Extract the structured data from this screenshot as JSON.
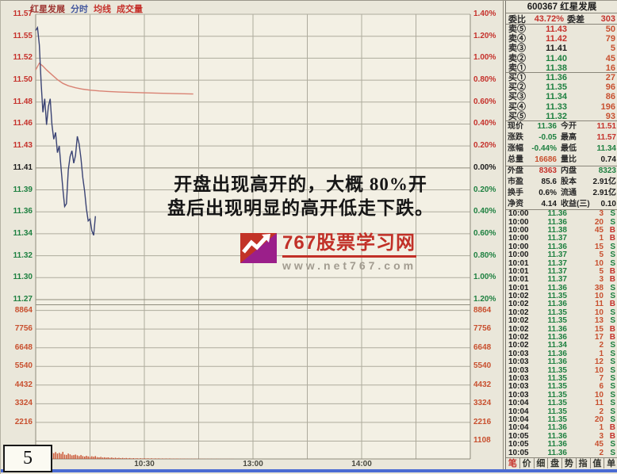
{
  "chart": {
    "header": {
      "stock": "红星发展",
      "tab_minute": "分时",
      "tab_ma": "均线",
      "tab_volume": "成交量"
    },
    "annotation_line1": "开盘出现高开的，大概 80%开",
    "annotation_line2": "盘后出现明显的高开低走下跌。",
    "watermark": {
      "title": "767股票学习网",
      "url": "www.net767.com"
    },
    "page_number": "5"
  },
  "chart_data": {
    "type": "line",
    "title": "红星发展(600367) 分时走势",
    "prev_close": 11.41,
    "open": 11.51,
    "high": 11.57,
    "low": 11.34,
    "last": 11.36,
    "price_axis": [
      "11.57",
      "11.55",
      "11.52",
      "11.50",
      "11.48",
      "11.46",
      "11.43",
      "11.41",
      "11.39",
      "11.36",
      "11.34",
      "11.32",
      "11.30",
      "11.27"
    ],
    "pct_axis": [
      "1.40%",
      "1.20%",
      "1.00%",
      "0.80%",
      "0.60%",
      "0.40%",
      "0.20%",
      "0.00%",
      "0.20%",
      "0.40%",
      "0.60%",
      "0.80%",
      "1.00%",
      "1.20%"
    ],
    "volume_axis": [
      "8864",
      "7756",
      "6648",
      "5540",
      "4432",
      "3324",
      "2216",
      "1108"
    ],
    "time_ticks": [
      {
        "label": "10:30",
        "minute": 60
      },
      {
        "label": "13:00",
        "minute": 120
      },
      {
        "label": "14:00",
        "minute": 180
      }
    ],
    "session_minutes": 240,
    "series": [
      {
        "name": "price",
        "x": [
          0,
          1,
          2,
          3,
          4,
          5,
          6,
          7,
          8,
          9,
          10,
          11,
          12,
          13,
          14,
          15,
          16,
          17,
          18,
          19,
          20,
          21,
          22,
          23,
          24,
          25,
          26,
          27,
          28,
          29,
          30,
          31,
          32,
          33
        ],
        "values": [
          11.553,
          11.556,
          11.538,
          11.498,
          11.468,
          11.482,
          11.455,
          11.474,
          11.482,
          11.455,
          11.44,
          11.447,
          11.426,
          11.433,
          11.41,
          11.388,
          11.37,
          11.373,
          11.408,
          11.422,
          11.428,
          11.415,
          11.423,
          11.443,
          11.435,
          11.42,
          11.4,
          11.386,
          11.368,
          11.355,
          11.357,
          11.345,
          11.34,
          11.36
        ]
      },
      {
        "name": "avg",
        "x": [
          0,
          2,
          4,
          6,
          9,
          12,
          15,
          18,
          22,
          26,
          30,
          35,
          40,
          46,
          53,
          60,
          68,
          77,
          87
        ],
        "values": [
          11.512,
          11.519,
          11.516,
          11.512,
          11.507,
          11.502,
          11.498,
          11.4955,
          11.4935,
          11.492,
          11.491,
          11.4902,
          11.4896,
          11.489,
          11.4886,
          11.4882,
          11.4878,
          11.4874,
          11.487
        ]
      }
    ],
    "volume_series": {
      "name": "volume",
      "values": [
        700,
        850,
        760,
        620,
        540,
        580,
        460,
        420,
        520,
        380,
        340,
        410,
        320,
        360,
        300,
        420,
        260,
        240,
        320,
        270,
        210,
        230,
        260,
        210,
        170,
        230,
        170,
        140,
        190,
        150,
        120,
        160,
        130,
        170,
        110,
        95,
        120,
        85,
        100,
        75,
        95,
        65,
        85,
        55,
        75,
        50,
        65,
        45,
        60,
        42,
        55,
        38,
        50,
        35,
        46,
        32,
        44,
        30,
        42,
        28,
        40,
        26,
        38,
        25,
        36,
        24,
        34,
        22,
        32,
        20,
        30,
        19,
        28,
        18,
        26,
        16,
        24,
        15,
        22,
        14,
        20,
        13,
        18,
        12,
        16,
        10,
        14,
        8,
        12,
        10,
        9,
        11,
        8,
        10,
        7,
        9,
        6,
        8,
        7,
        6,
        8,
        5,
        7,
        6,
        5,
        7,
        5,
        6,
        5,
        4
      ]
    }
  },
  "quote": {
    "code": "600367",
    "name": "红星发展",
    "weibi": {
      "label": "委比",
      "value": "43.72%",
      "label2": "委差",
      "value2": "303"
    },
    "asks": [
      {
        "level": "卖⑤",
        "price": "11.43",
        "vol": "50",
        "tone": "up"
      },
      {
        "level": "卖④",
        "price": "11.42",
        "vol": "79",
        "tone": "up"
      },
      {
        "level": "卖③",
        "price": "11.41",
        "vol": "5",
        "tone": "flat"
      },
      {
        "level": "卖②",
        "price": "11.40",
        "vol": "45",
        "tone": "down"
      },
      {
        "level": "卖①",
        "price": "11.38",
        "vol": "16",
        "tone": "down"
      }
    ],
    "bids": [
      {
        "level": "买①",
        "price": "11.36",
        "vol": "27",
        "tone": "down"
      },
      {
        "level": "买②",
        "price": "11.35",
        "vol": "96",
        "tone": "down"
      },
      {
        "level": "买③",
        "price": "11.34",
        "vol": "86",
        "tone": "down"
      },
      {
        "level": "买④",
        "price": "11.33",
        "vol": "196",
        "tone": "down"
      },
      {
        "level": "买⑤",
        "price": "11.32",
        "vol": "93",
        "tone": "down"
      }
    ],
    "stats": [
      {
        "l1": "现价",
        "v1": "11.36",
        "t1": "down",
        "l2": "今开",
        "v2": "11.51",
        "t2": "up"
      },
      {
        "l1": "涨跌",
        "v1": "-0.05",
        "t1": "down",
        "l2": "最高",
        "v2": "11.57",
        "t2": "up"
      },
      {
        "l1": "涨幅",
        "v1": "-0.44%",
        "t1": "down",
        "l2": "最低",
        "v2": "11.34",
        "t2": "down"
      },
      {
        "l1": "总量",
        "v1": "16686",
        "t1": "vol",
        "l2": "量比",
        "v2": "0.74",
        "t2": "flat"
      },
      {
        "l1": "外盘",
        "v1": "8363",
        "t1": "up",
        "l2": "内盘",
        "v2": "8323",
        "t2": "down"
      },
      {
        "l1": "市盈",
        "v1": "85.6",
        "t1": "flat",
        "l2": "股本",
        "v2": "2.91亿",
        "t2": "flat"
      },
      {
        "l1": "换手",
        "v1": "0.6%",
        "t1": "flat",
        "l2": "流通",
        "v2": "2.91亿",
        "t2": "flat"
      },
      {
        "l1": "净资",
        "v1": "4.14",
        "t1": "flat",
        "l2": "收益(三)",
        "v2": "0.10",
        "t2": "flat"
      }
    ],
    "ticks": [
      {
        "t": "10:00",
        "p": "11.36",
        "v": "3",
        "d": "S"
      },
      {
        "t": "10:00",
        "p": "11.36",
        "v": "20",
        "d": "S"
      },
      {
        "t": "10:00",
        "p": "11.38",
        "v": "45",
        "d": "B"
      },
      {
        "t": "10:00",
        "p": "11.37",
        "v": "1",
        "d": "B"
      },
      {
        "t": "10:00",
        "p": "11.36",
        "v": "15",
        "d": "S"
      },
      {
        "t": "10:00",
        "p": "11.37",
        "v": "5",
        "d": "S"
      },
      {
        "t": "10:01",
        "p": "11.37",
        "v": "10",
        "d": "S"
      },
      {
        "t": "10:01",
        "p": "11.37",
        "v": "5",
        "d": "B"
      },
      {
        "t": "10:01",
        "p": "11.37",
        "v": "3",
        "d": "B"
      },
      {
        "t": "10:01",
        "p": "11.36",
        "v": "38",
        "d": "S"
      },
      {
        "t": "10:02",
        "p": "11.35",
        "v": "10",
        "d": "S"
      },
      {
        "t": "10:02",
        "p": "11.36",
        "v": "11",
        "d": "B"
      },
      {
        "t": "10:02",
        "p": "11.35",
        "v": "10",
        "d": "S"
      },
      {
        "t": "10:02",
        "p": "11.35",
        "v": "13",
        "d": "S"
      },
      {
        "t": "10:02",
        "p": "11.36",
        "v": "15",
        "d": "B"
      },
      {
        "t": "10:02",
        "p": "11.36",
        "v": "17",
        "d": "B"
      },
      {
        "t": "10:02",
        "p": "11.34",
        "v": "2",
        "d": "S"
      },
      {
        "t": "10:03",
        "p": "11.36",
        "v": "1",
        "d": "S"
      },
      {
        "t": "10:03",
        "p": "11.36",
        "v": "12",
        "d": "S"
      },
      {
        "t": "10:03",
        "p": "11.35",
        "v": "10",
        "d": "S"
      },
      {
        "t": "10:03",
        "p": "11.35",
        "v": "7",
        "d": "S"
      },
      {
        "t": "10:03",
        "p": "11.35",
        "v": "6",
        "d": "S"
      },
      {
        "t": "10:03",
        "p": "11.35",
        "v": "10",
        "d": "S"
      },
      {
        "t": "10:04",
        "p": "11.35",
        "v": "11",
        "d": "S"
      },
      {
        "t": "10:04",
        "p": "11.35",
        "v": "2",
        "d": "S"
      },
      {
        "t": "10:04",
        "p": "11.35",
        "v": "20",
        "d": "S"
      },
      {
        "t": "10:04",
        "p": "11.36",
        "v": "1",
        "d": "B"
      },
      {
        "t": "10:05",
        "p": "11.36",
        "v": "3",
        "d": "B"
      },
      {
        "t": "10:05",
        "p": "11.36",
        "v": "45",
        "d": "S"
      },
      {
        "t": "10:05",
        "p": "11.36",
        "v": "2",
        "d": "S"
      }
    ],
    "tabs": [
      "笔",
      "价",
      "细",
      "盘",
      "势",
      "指",
      "值",
      "单"
    ]
  }
}
